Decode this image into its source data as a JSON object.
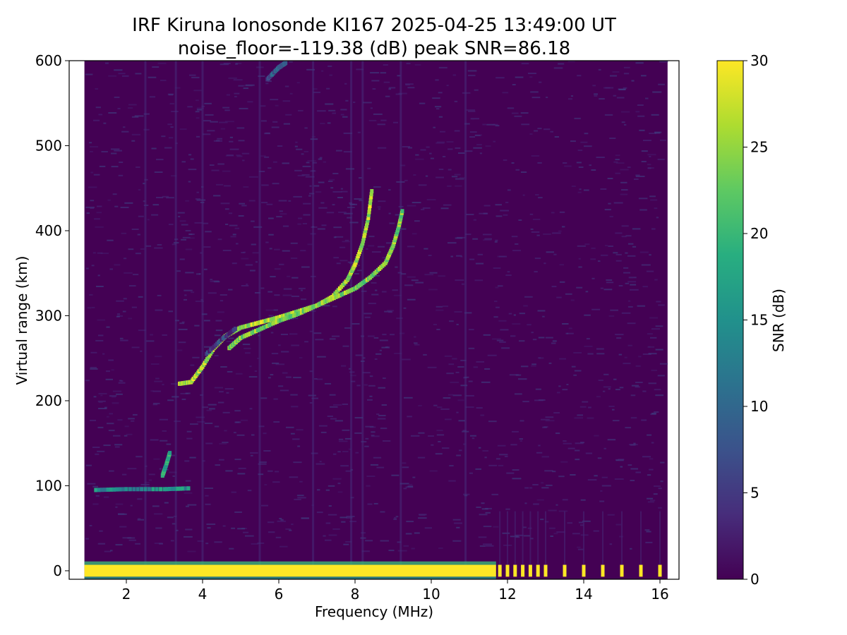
{
  "chart_data": {
    "type": "heatmap",
    "title": "IRF Kiruna Ionosonde KI167 2025-04-25 13:49:00  UT",
    "subtitle": "noise_floor=-119.38 (dB) peak SNR=86.18",
    "xlabel": "Frequency (MHz)",
    "ylabel": "Virtual range (km)",
    "colorbar_label": "SNR (dB)",
    "colormap": "viridis",
    "xlim": [
      0.5,
      16.5
    ],
    "ylim": [
      -10,
      600
    ],
    "clim": [
      0,
      30
    ],
    "x_ticks": [
      2,
      4,
      6,
      8,
      10,
      12,
      14,
      16
    ],
    "y_ticks": [
      0,
      100,
      200,
      300,
      400,
      500,
      600
    ],
    "colorbar_ticks": [
      0,
      5,
      10,
      15,
      20,
      25,
      30
    ],
    "x_tick_labels": [
      "2",
      "4",
      "6",
      "8",
      "10",
      "12",
      "14",
      "16"
    ],
    "y_tick_labels": [
      "0",
      "100",
      "200",
      "300",
      "400",
      "500",
      "600"
    ],
    "colorbar_tick_labels": [
      "0",
      "5",
      "10",
      "15",
      "20",
      "25",
      "30"
    ],
    "data_extent_x": [
      0.9,
      16.2
    ],
    "background_color": "#440154",
    "traces": [
      {
        "label": "ordinary trace",
        "snr": 26,
        "points": [
          [
            3.4,
            220
          ],
          [
            3.7,
            222
          ],
          [
            4.0,
            240
          ],
          [
            4.3,
            262
          ],
          [
            4.6,
            276
          ],
          [
            5.0,
            286
          ],
          [
            5.5,
            292
          ],
          [
            6.0,
            298
          ],
          [
            6.5,
            305
          ],
          [
            7.0,
            312
          ],
          [
            7.4,
            322
          ],
          [
            7.8,
            342
          ],
          [
            8.0,
            360
          ],
          [
            8.2,
            385
          ],
          [
            8.35,
            415
          ],
          [
            8.45,
            450
          ]
        ]
      },
      {
        "label": "extraordinary trace",
        "snr": 24,
        "points": [
          [
            4.7,
            262
          ],
          [
            5.0,
            274
          ],
          [
            5.5,
            284
          ],
          [
            6.0,
            294
          ],
          [
            6.5,
            302
          ],
          [
            7.0,
            312
          ],
          [
            7.5,
            322
          ],
          [
            8.0,
            332
          ],
          [
            8.4,
            345
          ],
          [
            8.8,
            362
          ],
          [
            9.0,
            382
          ],
          [
            9.15,
            405
          ],
          [
            9.25,
            425
          ]
        ]
      },
      {
        "label": "weak upper segment",
        "snr": 6,
        "points": [
          [
            4.1,
            255
          ],
          [
            4.5,
            272
          ],
          [
            4.9,
            286
          ]
        ]
      },
      {
        "label": "multiple echo",
        "snr": 8,
        "points": [
          [
            5.7,
            578
          ],
          [
            6.0,
            592
          ],
          [
            6.2,
            598
          ]
        ]
      },
      {
        "label": "sporadic E trace",
        "snr": 15,
        "points": [
          [
            1.2,
            95
          ],
          [
            2.0,
            96
          ],
          [
            3.0,
            96
          ],
          [
            3.7,
            97
          ]
        ]
      },
      {
        "label": "sporadic E blob",
        "snr": 18,
        "points": [
          [
            2.95,
            112
          ],
          [
            3.05,
            125
          ],
          [
            3.15,
            140
          ]
        ]
      }
    ],
    "ground_band": {
      "y_range": [
        -7,
        7
      ],
      "x_range": [
        0.9,
        11.7
      ],
      "snr": 30
    },
    "pulses": {
      "snr": 30,
      "x": [
        11.8,
        12.0,
        12.2,
        12.4,
        12.6,
        12.8,
        13.0,
        13.5,
        14.0,
        14.5,
        15.0,
        15.5,
        16.0
      ]
    }
  }
}
